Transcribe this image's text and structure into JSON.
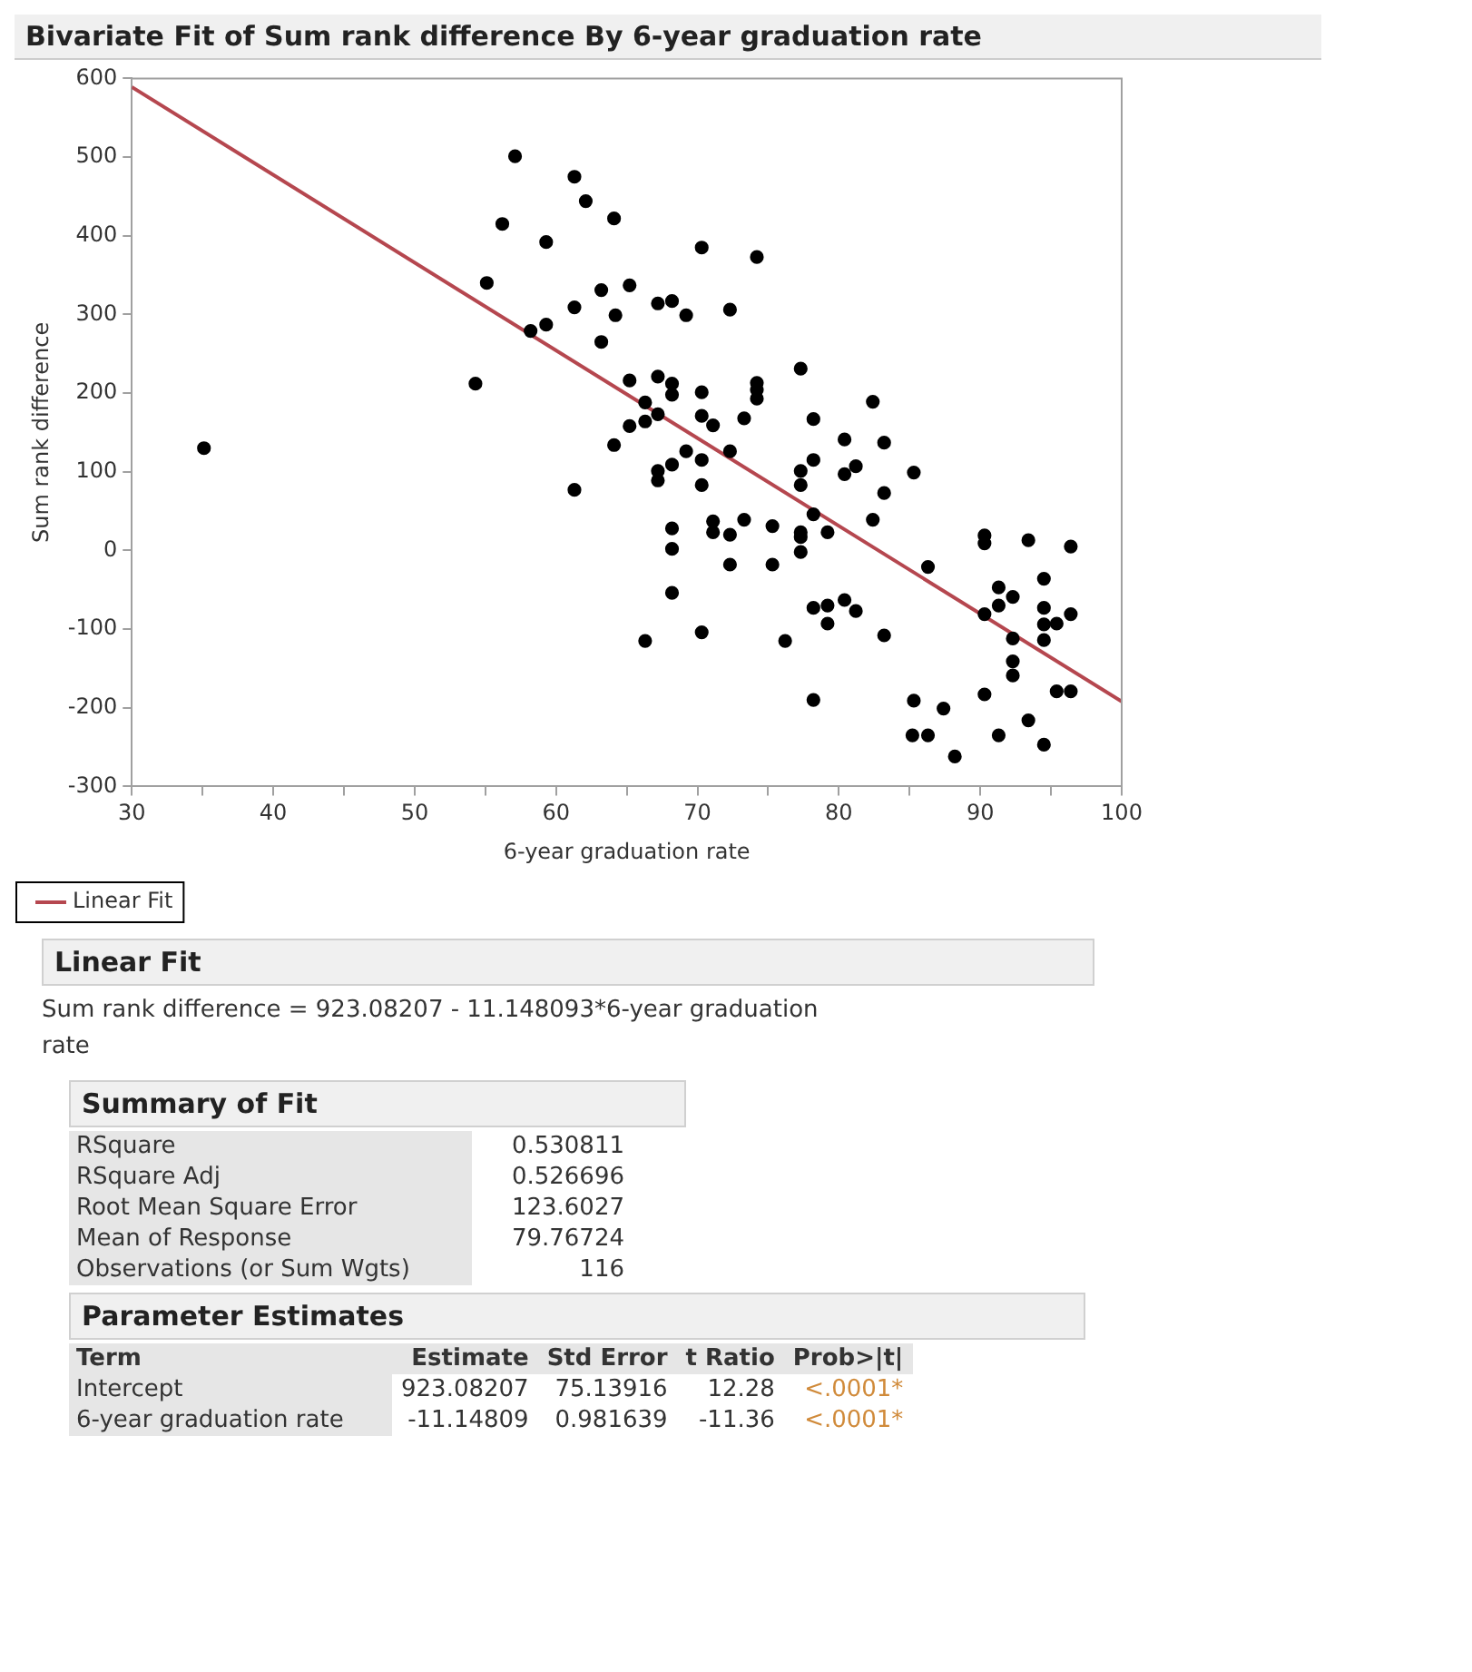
{
  "chart_data": [
    {
      "type": "scatter",
      "title": "Bivariate Fit of Sum rank difference By 6-year graduation rate",
      "xlabel": "6-year graduation rate",
      "ylabel": "Sum rank difference",
      "xlim": [
        30,
        100
      ],
      "ylim": [
        -300,
        600
      ],
      "xticks": [
        30,
        {
          "value": 35,
          "label": null
        },
        40,
        {
          "value": 45,
          "label": null
        },
        50,
        {
          "value": 55,
          "label": null
        },
        60,
        {
          "value": 65,
          "label": null
        },
        70,
        {
          "value": 75,
          "label": null
        },
        80,
        {
          "value": 85,
          "label": null
        },
        90,
        {
          "value": 95,
          "label": null
        },
        100
      ],
      "yticks": [
        -300,
        -200,
        -100,
        0,
        100,
        200,
        300,
        400,
        500,
        600
      ],
      "legend": "bottom left",
      "series": [
        {
          "type": "scatter",
          "marker": "circle",
          "color": "#000000",
          "x": [
            35.1,
            57.1,
            56.2,
            59.3,
            55.1,
            58.2,
            59.3,
            54.3,
            61.3,
            62.1,
            64.1,
            70.3,
            74.2,
            63.2,
            65.2,
            61.3,
            64.2,
            63.2,
            67.2,
            68.2,
            69.2,
            72.3,
            77.3,
            82.4,
            65.2,
            67.2,
            68.2,
            68.2,
            70.3,
            74.2,
            74.2,
            74.2,
            66.3,
            70.3,
            71.1,
            73.3,
            78.2,
            80.4,
            83.2,
            65.2,
            66.3,
            67.2,
            64.1,
            69.2,
            70.3,
            72.3,
            67.2,
            68.2,
            67.2,
            70.3,
            61.3,
            77.3,
            78.2,
            80.4,
            81.2,
            85.3,
            77.3,
            83.2,
            78.2,
            79.2,
            82.4,
            68.2,
            68.2,
            71.1,
            71.1,
            72.3,
            73.3,
            75.3,
            77.3,
            77.3,
            77.3,
            72.3,
            75.3,
            68.2,
            78.2,
            79.2,
            80.4,
            81.2,
            79.2,
            83.2,
            66.3,
            70.3,
            76.2,
            78.2,
            85.3,
            85.2,
            86.3,
            87.4,
            88.2,
            86.3,
            90.3,
            90.3,
            93.4,
            96.4,
            94.5,
            91.3,
            92.3,
            91.3,
            90.3,
            94.5,
            94.5,
            95.4,
            96.4,
            92.3,
            94.5,
            92.3,
            92.3,
            90.3,
            95.4,
            96.4,
            93.4,
            91.3,
            94.5
          ],
          "values": [
            130,
            501,
            415,
            392,
            340,
            279,
            287,
            212,
            475,
            444,
            422,
            385,
            373,
            331,
            337,
            309,
            299,
            265,
            314,
            317,
            299,
            306,
            231,
            189,
            216,
            221,
            212,
            198,
            201,
            213,
            204,
            193,
            188,
            171,
            159,
            168,
            167,
            141,
            137,
            158,
            164,
            173,
            134,
            126,
            115,
            126,
            101,
            109,
            89,
            83,
            77,
            101,
            115,
            97,
            107,
            99,
            83,
            73,
            46,
            23,
            39,
            28,
            2,
            37,
            23,
            20,
            39,
            31,
            23,
            17,
            -2,
            -18,
            -18,
            -54,
            -73,
            -70,
            -63,
            -77,
            -93,
            -108,
            -115,
            -104,
            -115,
            -190,
            -191,
            -235,
            -235,
            -201,
            -262,
            -21,
            19,
            9,
            13,
            5,
            -36,
            -47,
            -59,
            -70,
            -81,
            -73,
            -94,
            -93,
            -81,
            -112,
            -114,
            -141,
            -159,
            -183,
            -179,
            -179,
            -216,
            -235,
            -247
          ]
        },
        {
          "type": "line",
          "marker": "none",
          "name": "Linear Fit",
          "color": "#b5474f",
          "x": [
            30,
            100
          ],
          "values": [
            589,
            -192
          ]
        }
      ]
    },
    {
      "type": "other",
      "title": "Linear Fit",
      "annotations": [
        "Sum rank difference = 923.08207 - 11.148093*6-year graduation rate"
      ]
    },
    {
      "type": "other",
      "title": "Summary of Fit",
      "y_categories": [
        "RSquare",
        "RSquare Adj",
        "Root Mean Square Error",
        "Mean of Response",
        "Observations (or Sum Wgts)"
      ],
      "cell_labels": [
        [
          "0.530811"
        ],
        [
          "0.526696"
        ],
        [
          "123.6027"
        ],
        [
          "79.76724"
        ],
        [
          "116"
        ]
      ]
    },
    {
      "type": "other",
      "title": "Parameter Estimates",
      "ylabel": "Term",
      "categories": [
        "Estimate",
        "Std Error",
        "t Ratio",
        "Prob>|t|"
      ],
      "y_categories": [
        "Intercept",
        "6-year graduation rate"
      ],
      "cell_labels": [
        [
          "923.08207",
          "75.13916",
          "12.28",
          "<.0001*"
        ],
        [
          "-11.14809",
          "0.981639",
          "-11.36",
          "<.0001*"
        ]
      ]
    }
  ]
}
